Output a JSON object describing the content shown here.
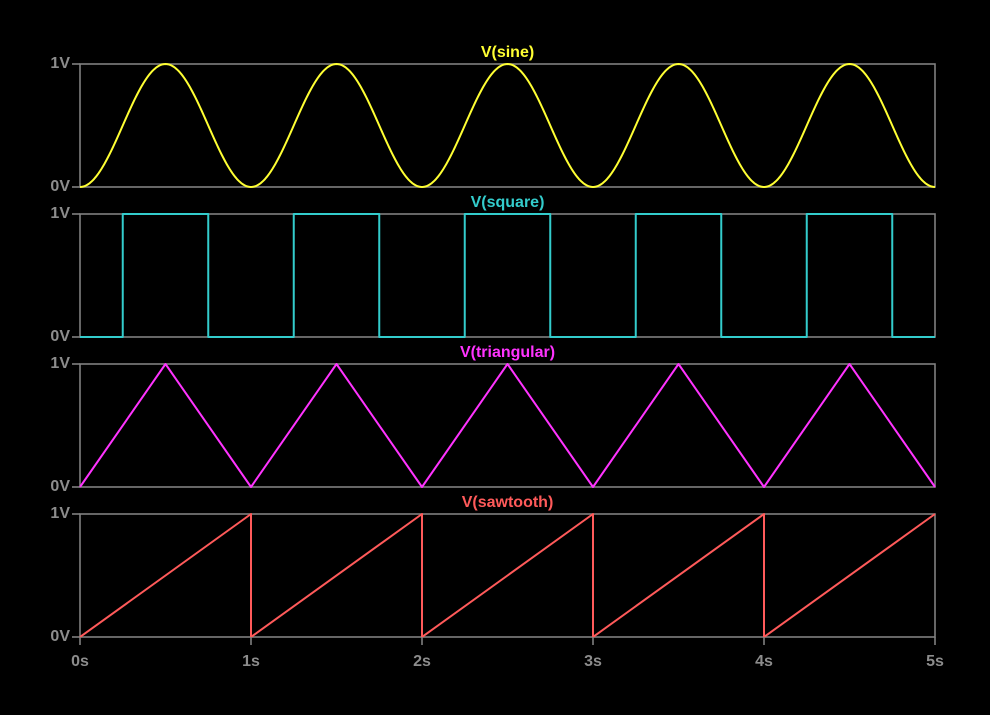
{
  "chart_data": [
    {
      "type": "line",
      "title": "V(sine)",
      "color": "#ffff33",
      "yticks": [
        "1V",
        "0V"
      ],
      "ylim": [
        0,
        1
      ],
      "xlim": [
        0,
        5
      ],
      "x": [
        0,
        0.125,
        0.25,
        0.375,
        0.5,
        0.625,
        0.75,
        0.875,
        1,
        1.125,
        1.25,
        1.375,
        1.5,
        1.625,
        1.75,
        1.875,
        2,
        2.125,
        2.25,
        2.375,
        2.5,
        2.625,
        2.75,
        2.875,
        3,
        3.125,
        3.25,
        3.375,
        3.5,
        3.625,
        3.75,
        3.875,
        4,
        4.125,
        4.25,
        4.375,
        4.5,
        4.625,
        4.75,
        4.875,
        5
      ],
      "y": [
        0,
        0.146,
        0.5,
        0.854,
        1,
        0.854,
        0.5,
        0.146,
        0,
        0.146,
        0.5,
        0.854,
        1,
        0.854,
        0.5,
        0.146,
        0,
        0.146,
        0.5,
        0.854,
        1,
        0.854,
        0.5,
        0.146,
        0,
        0.146,
        0.5,
        0.854,
        1,
        0.854,
        0.5,
        0.146,
        0,
        0.146,
        0.5,
        0.854,
        1,
        0.854,
        0.5,
        0.146,
        0
      ]
    },
    {
      "type": "line",
      "title": "V(square)",
      "color": "#33cccc",
      "yticks": [
        "1V",
        "0V"
      ],
      "ylim": [
        0,
        1
      ],
      "xlim": [
        0,
        5
      ],
      "x": [
        0,
        0.25,
        0.25,
        0.75,
        0.75,
        1.25,
        1.25,
        1.75,
        1.75,
        2.25,
        2.25,
        2.75,
        2.75,
        3.25,
        3.25,
        3.75,
        3.75,
        4.25,
        4.25,
        4.75,
        4.75,
        5
      ],
      "y": [
        0,
        0,
        1,
        1,
        0,
        0,
        1,
        1,
        0,
        0,
        1,
        1,
        0,
        0,
        1,
        1,
        0,
        0,
        1,
        1,
        0,
        0
      ]
    },
    {
      "type": "line",
      "title": "V(triangular)",
      "color": "#ff33ff",
      "yticks": [
        "1V",
        "0V"
      ],
      "ylim": [
        0,
        1
      ],
      "xlim": [
        0,
        5
      ],
      "x": [
        0,
        0.5,
        1,
        1.5,
        2,
        2.5,
        3,
        3.5,
        4,
        4.5,
        5
      ],
      "y": [
        0,
        1,
        0,
        1,
        0,
        1,
        0,
        1,
        0,
        1,
        0
      ]
    },
    {
      "type": "line",
      "title": "V(sawtooth)",
      "color": "#ff5a5a",
      "yticks": [
        "1V",
        "0V"
      ],
      "ylim": [
        0,
        1
      ],
      "xlim": [
        0,
        5
      ],
      "xticks": [
        "0s",
        "1s",
        "2s",
        "3s",
        "4s",
        "5s"
      ],
      "x": [
        0,
        1,
        1,
        2,
        2,
        3,
        3,
        4,
        4,
        5
      ],
      "y": [
        0,
        1,
        0,
        1,
        0,
        1,
        0,
        1,
        0,
        1
      ]
    }
  ]
}
